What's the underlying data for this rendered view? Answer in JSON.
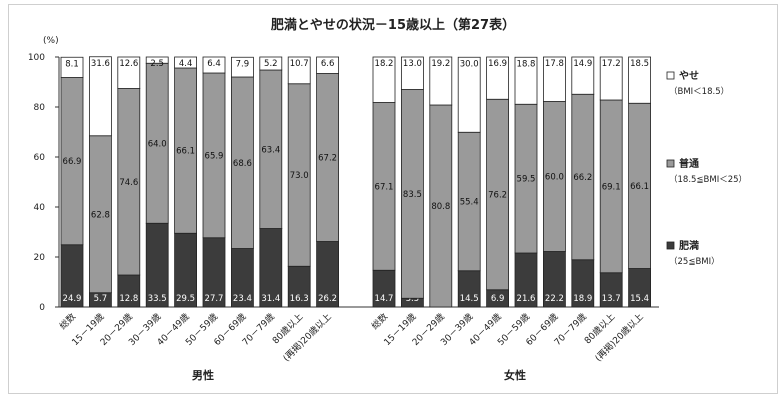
{
  "chart_data": {
    "type": "bar",
    "stacked": true,
    "title": "肥満とやせの状況－15歳以上（第27表）",
    "ylabel": "(%)",
    "ylim": [
      0,
      100
    ],
    "yticks": [
      0,
      20,
      40,
      60,
      80,
      100
    ],
    "grid": false,
    "legend_position": "right",
    "series": [
      {
        "key": "yase",
        "name": "やせ",
        "note": "（BMI＜18.5）",
        "color": "#ffffff"
      },
      {
        "key": "futsu",
        "name": "普通",
        "note": "（18.5≦BMI＜25）",
        "color": "#9a9a9a"
      },
      {
        "key": "himan",
        "name": "肥満",
        "note": "（25≦BMI）",
        "color": "#3c3c3c"
      }
    ],
    "groups": [
      {
        "label": "男性",
        "categories": [
          "総数",
          "15－19歳",
          "20－29歳",
          "30－39歳",
          "40－49歳",
          "50－59歳",
          "60－69歳",
          "70－79歳",
          "80歳以上",
          "(再掲)20歳以上"
        ],
        "himan": [
          24.9,
          5.7,
          12.8,
          33.5,
          29.5,
          27.7,
          23.4,
          31.4,
          16.3,
          26.2
        ],
        "futsu": [
          66.9,
          62.8,
          74.6,
          64.0,
          66.1,
          65.9,
          68.6,
          63.4,
          73.0,
          67.2
        ],
        "yase": [
          8.1,
          31.6,
          12.6,
          2.5,
          4.4,
          6.4,
          7.9,
          5.2,
          10.7,
          6.6
        ]
      },
      {
        "label": "女性",
        "categories": [
          "総数",
          "15－19歳",
          "20－29歳",
          "30－39歳",
          "40－49歳",
          "50－59歳",
          "60－69歳",
          "70－79歳",
          "80歳以上",
          "(再掲)20歳以上"
        ],
        "himan": [
          14.7,
          3.5,
          null,
          14.5,
          6.9,
          21.6,
          22.2,
          18.9,
          13.7,
          15.4
        ],
        "futsu": [
          67.1,
          83.5,
          80.8,
          55.4,
          76.2,
          59.5,
          60.0,
          66.2,
          69.1,
          66.1
        ],
        "yase": [
          18.2,
          13.0,
          19.2,
          30.0,
          16.9,
          18.8,
          17.8,
          14.9,
          17.2,
          18.5
        ]
      }
    ]
  }
}
